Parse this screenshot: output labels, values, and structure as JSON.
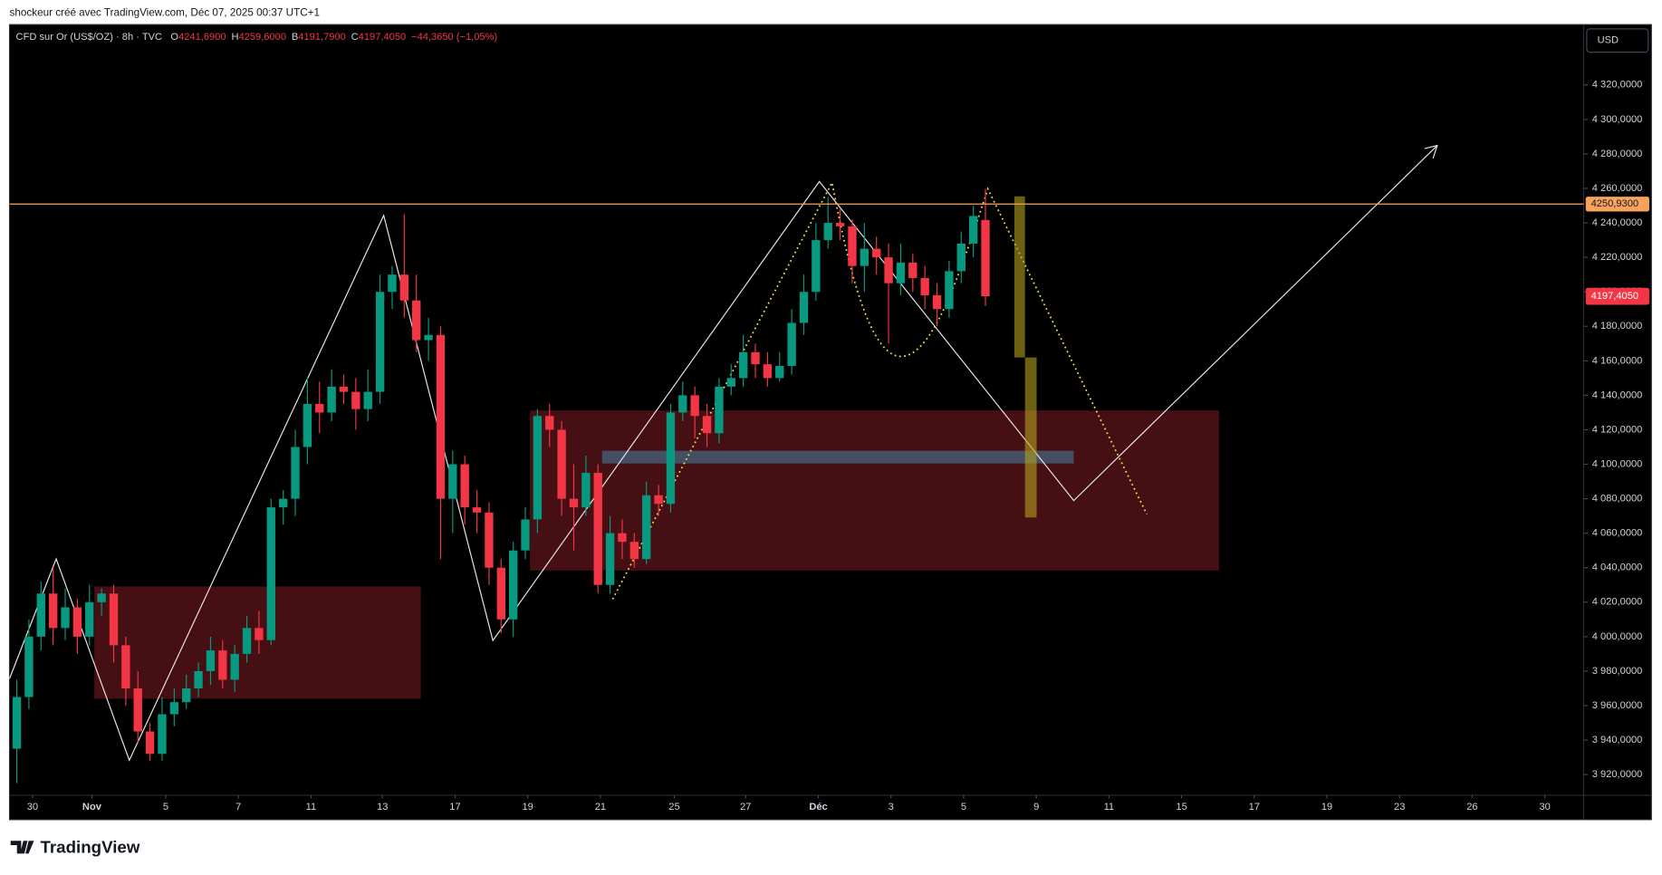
{
  "attribution": "shockeur créé avec TradingView.com, Déc 07, 2025 00:37 UTC+1",
  "logo": "TradingView",
  "chart_data": {
    "type": "candlestick",
    "title": "CFD sur Or (US$/OZ) · 8h · TVC",
    "legend_items": [
      {
        "key": "O",
        "value": "4241,6900"
      },
      {
        "key": "H",
        "value": "4259,6000"
      },
      {
        "key": "B",
        "value": "4191,7900"
      },
      {
        "key": "C",
        "value": "4197,4050"
      }
    ],
    "change": "−44,3650 (−1,05%)",
    "currency": "USD",
    "up_color": "#089981",
    "down_color": "#f23645",
    "open": [
      3935,
      3965,
      4000,
      4025,
      4005,
      4017,
      4000,
      4020,
      4025,
      3995,
      3970,
      3945,
      3932,
      3955,
      3962,
      3970,
      3980,
      3992,
      3975,
      3990,
      4005,
      3998,
      4075,
      4080,
      4110,
      4135,
      4130,
      4145,
      4142,
      4132,
      4142,
      4200,
      4210,
      4195,
      4172,
      4175,
      4080,
      4100,
      4075,
      4072,
      4040,
      4010,
      4050,
      4068,
      4128,
      4120,
      4080,
      4075,
      4095,
      4030,
      4060,
      4055,
      4045,
      4082,
      4077,
      4130,
      4140,
      4128,
      4118,
      4145,
      4150,
      4165,
      4158,
      4150,
      4157,
      4182,
      4200,
      4230,
      4240,
      4238,
      4215,
      4225,
      4220,
      4205,
      4217,
      4208,
      4198,
      4190,
      4212,
      4228,
      4241.69
    ],
    "high": [
      3975,
      4010,
      4032,
      4040,
      4028,
      4022,
      4030,
      4028,
      4030,
      4000,
      3980,
      3950,
      3965,
      3970,
      3978,
      3985,
      4000,
      3998,
      3995,
      4012,
      4015,
      4080,
      4085,
      4120,
      4150,
      4148,
      4155,
      4152,
      4150,
      4155,
      4210,
      4215,
      4245,
      4210,
      4185,
      4180,
      4108,
      4105,
      4085,
      4078,
      4045,
      4055,
      4075,
      4132,
      4135,
      4125,
      4100,
      4105,
      4100,
      4070,
      4068,
      4060,
      4090,
      4088,
      4135,
      4148,
      4145,
      4135,
      4150,
      4158,
      4175,
      4170,
      4165,
      4165,
      4190,
      4210,
      4240,
      4255,
      4248,
      4242,
      4240,
      4232,
      4228,
      4228,
      4222,
      4215,
      4205,
      4218,
      4235,
      4250,
      4259.6
    ],
    "low": [
      3915,
      3958,
      3992,
      3995,
      3998,
      3990,
      3995,
      4012,
      3985,
      3960,
      3938,
      3928,
      3928,
      3948,
      3958,
      3965,
      3972,
      3970,
      3968,
      3985,
      3990,
      3995,
      4065,
      4070,
      4100,
      4118,
      4125,
      4135,
      4120,
      4125,
      4135,
      4190,
      4185,
      4165,
      4160,
      4045,
      4060,
      4065,
      4060,
      4030,
      4002,
      4000,
      4045,
      4060,
      4110,
      4070,
      4050,
      4070,
      4025,
      4025,
      4045,
      4040,
      4042,
      4070,
      4072,
      4125,
      4115,
      4110,
      4112,
      4140,
      4145,
      4150,
      4145,
      4148,
      4152,
      4175,
      4195,
      4225,
      4230,
      4205,
      4200,
      4210,
      4170,
      4198,
      4200,
      4190,
      4180,
      4185,
      4205,
      4220,
      4191.79
    ],
    "close": [
      3965,
      4000,
      4025,
      4005,
      4017,
      4000,
      4020,
      4025,
      3995,
      3970,
      3945,
      3932,
      3955,
      3962,
      3970,
      3980,
      3992,
      3975,
      3990,
      4005,
      3998,
      4075,
      4080,
      4110,
      4135,
      4130,
      4145,
      4142,
      4132,
      4142,
      4200,
      4210,
      4195,
      4172,
      4175,
      4080,
      4100,
      4075,
      4072,
      4040,
      4010,
      4050,
      4068,
      4128,
      4120,
      4080,
      4075,
      4095,
      4030,
      4060,
      4055,
      4045,
      4082,
      4077,
      4130,
      4140,
      4128,
      4118,
      4145,
      4150,
      4165,
      4158,
      4150,
      4157,
      4182,
      4200,
      4230,
      4240,
      4238,
      4215,
      4225,
      4220,
      4205,
      4217,
      4208,
      4198,
      4190,
      4212,
      4228,
      4244,
      4197.405
    ],
    "xlim": [
      -0.6,
      129.4
    ],
    "xticks": [
      {
        "value": 1.3,
        "label": "30"
      },
      {
        "value": 6.2,
        "label": "Nov"
      },
      {
        "value": 12.3,
        "label": "5"
      },
      {
        "value": 18.3,
        "label": "7"
      },
      {
        "value": 24.3,
        "label": "11"
      },
      {
        "value": 30.2,
        "label": "13"
      },
      {
        "value": 36.2,
        "label": "17"
      },
      {
        "value": 42.2,
        "label": "19"
      },
      {
        "value": 48.2,
        "label": "21"
      },
      {
        "value": 54.3,
        "label": "25"
      },
      {
        "value": 60.2,
        "label": "27"
      },
      {
        "value": 66.2,
        "label": "Déc"
      },
      {
        "value": 72.2,
        "label": "3"
      },
      {
        "value": 78.2,
        "label": "5"
      },
      {
        "value": 84.2,
        "label": "9"
      },
      {
        "value": 90.2,
        "label": "11"
      },
      {
        "value": 96.2,
        "label": "15"
      },
      {
        "value": 102.2,
        "label": "17"
      },
      {
        "value": 108.2,
        "label": "19"
      },
      {
        "value": 114.2,
        "label": "23"
      },
      {
        "value": 120.2,
        "label": "26"
      },
      {
        "value": 126.2,
        "label": "30"
      }
    ],
    "ylim": [
      3908,
      4355
    ],
    "yticks": [
      {
        "value": 3920,
        "label": "3 920,0000"
      },
      {
        "value": 3940,
        "label": "3 940,0000"
      },
      {
        "value": 3960,
        "label": "3 960,0000"
      },
      {
        "value": 3980,
        "label": "3 980,0000"
      },
      {
        "value": 4000,
        "label": "4 000,0000"
      },
      {
        "value": 4020,
        "label": "4 020,0000"
      },
      {
        "value": 4040,
        "label": "4 040,0000"
      },
      {
        "value": 4060,
        "label": "4 060,0000"
      },
      {
        "value": 4080,
        "label": "4 080,0000"
      },
      {
        "value": 4100,
        "label": "4 100,0000"
      },
      {
        "value": 4120,
        "label": "4 120,0000"
      },
      {
        "value": 4140,
        "label": "4 140,0000"
      },
      {
        "value": 4160,
        "label": "4 160,0000"
      },
      {
        "value": 4180,
        "label": "4 180,0000"
      },
      {
        "value": 4200,
        "label": "4 200,0000"
      },
      {
        "value": 4220,
        "label": "4 220,0000"
      },
      {
        "value": 4240,
        "label": "4 240,0000"
      },
      {
        "value": 4260,
        "label": "4 260,0000"
      },
      {
        "value": 4280,
        "label": "4 280,0000"
      },
      {
        "value": 4300,
        "label": "4 300,0000"
      },
      {
        "value": 4320,
        "label": "4 320,0000"
      }
    ],
    "grid": false,
    "hline": {
      "value": 4250.93,
      "label": "4250,9300",
      "color": "#f7a35c"
    },
    "last_price": {
      "value": 4197.405,
      "label": "4197,4050",
      "color": "#f23645"
    }
  }
}
